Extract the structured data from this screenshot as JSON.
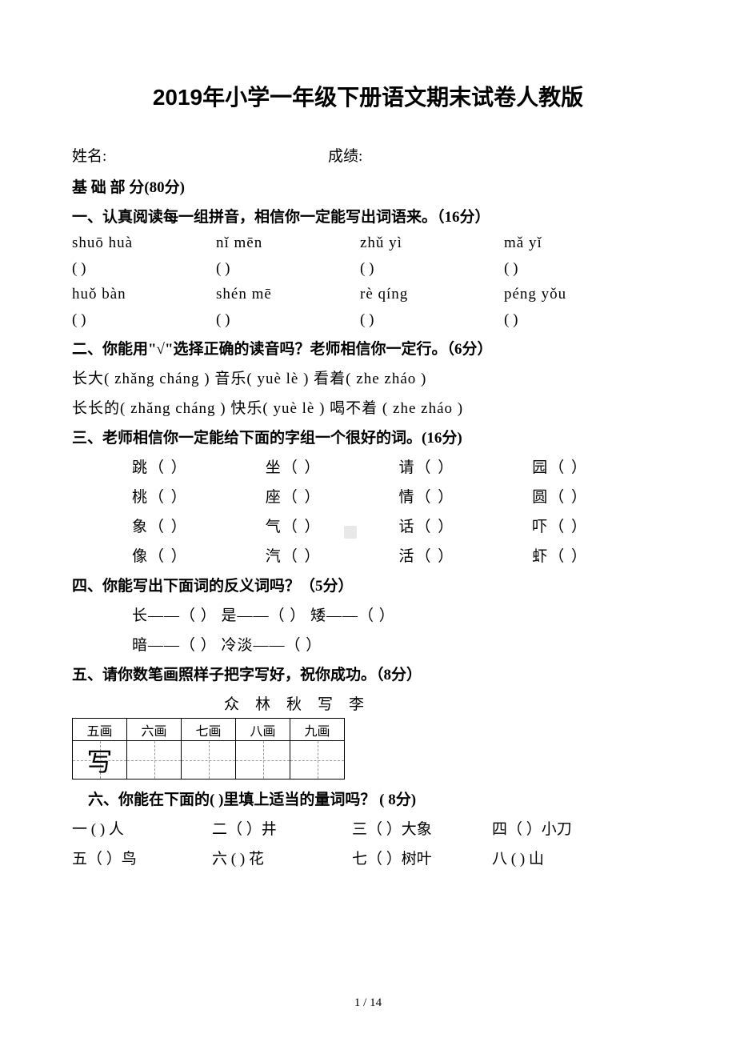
{
  "title": "2019年小学一年级下册语文期末试卷人教版",
  "nameLabel": "姓名:",
  "scoreLabel": "成绩:",
  "sectionBase": "基 础 部 分(80分)",
  "q1": {
    "header": "一、认真阅读每一组拼音，相信你一定能写出词语来。（16分）",
    "row1": [
      "shuō  huà",
      "nǐ  mēn",
      "zhǔ  yì",
      "mǎ  yǐ"
    ],
    "row2": [
      " huǒ  bàn",
      "shén mē",
      "rè qíng",
      "péng  yǒu"
    ],
    "paren": "(        )"
  },
  "q2": {
    "header": "二、你能用\"√\"选择正确的读音吗？老师相信你一定行。（6分）",
    "line1": "长大( zhǎng  cháng )   音乐( yuè  lè ) 看着( zhe  zháo )",
    "line2": "长长的( zhǎng  cháng )  快乐( yuè  lè )  喝不着 ( zhe  zháo )"
  },
  "q3": {
    "header": "三、老师相信你一定能给下面的字组一个很好的词。(16分)",
    "rows": [
      [
        "跳（    ）",
        "坐（    ）",
        "请（    ）",
        "园（     ）"
      ],
      [
        "桃（    ）",
        "座（    ）",
        "情（    ）",
        "圆（     ）"
      ],
      [
        "象（    ）",
        "气（    ）",
        "话（    ）",
        "吓（     ）"
      ],
      [
        "像（    ）",
        "汽（    ）",
        "活（    ）",
        "虾（     ）"
      ]
    ]
  },
  "q4": {
    "header": "四、你能写出下面词的反义词吗？（5分）",
    "line1": "长——（  ）  是——（  ）  矮——（  ）",
    "line2": "暗——（  ）  冷淡——（   ）"
  },
  "q5": {
    "header": "五、请你数笔画照样子把字写好，祝你成功。（8分）",
    "chars": "众林秋写李",
    "tableHeaders": [
      "五画",
      "六画",
      "七画",
      "八画",
      "九画"
    ],
    "exampleChar": "写"
  },
  "q6": {
    "header": "六、你能在下面的(   )里填上适当的量词吗？ ( 8分)",
    "row1": [
      "一 (   ) 人",
      "二（  ）井",
      "三（  ）大象",
      "四（  ）小刀"
    ],
    "row2": [
      "五（  ）鸟",
      "六 (   ) 花",
      "七（  ）树叶",
      "八 (   ) 山"
    ]
  },
  "pageNum": "1 / 14",
  "colors": {
    "text": "#000000",
    "background": "#ffffff",
    "gridDash": "#999999",
    "watermark": "#e8e8e8"
  },
  "fonts": {
    "body": "SimSun",
    "title": "SimHei",
    "titleSize": 28,
    "bodySize": 19
  }
}
